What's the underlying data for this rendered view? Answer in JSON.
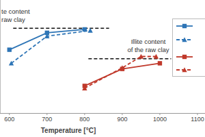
{
  "chart_data": {
    "type": "line",
    "x_label": "Temperature [°C]",
    "xlim": [
      575,
      1120
    ],
    "xticks": [
      600,
      700,
      800,
      900,
      1000,
      1100
    ],
    "ylim": [
      0,
      100
    ],
    "tick_labels": "x",
    "grid": false,
    "legend": "right",
    "series": [
      {
        "color": "#2e75b6",
        "marker": "square",
        "line_style": "solid",
        "x": [
          600,
          700,
          800
        ],
        "values": [
          56,
          71,
          74
        ]
      },
      {
        "color": "#2e75b6",
        "marker": "triangle",
        "line_style": "dashed",
        "x": [
          605,
          700,
          815
        ],
        "values": [
          44,
          68,
          73
        ]
      },
      {
        "color": "#c0392b",
        "marker": "square",
        "line_style": "solid",
        "x": [
          800,
          900,
          1000
        ],
        "values": [
          24,
          39,
          44
        ]
      },
      {
        "color": "#c0392b",
        "marker": "triangle",
        "line_style": "dashed",
        "x": [
          800,
          900,
          950,
          990
        ],
        "values": [
          22,
          40,
          50,
          50
        ]
      }
    ],
    "annotations": [
      {
        "text": [
          "te content",
          "raw clay"
        ],
        "y": 75,
        "x": [
          610,
          865
        ]
      },
      {
        "text": [
          "Illite content",
          "of the raw clay"
        ],
        "y": 48,
        "x": [
          810,
          1030
        ]
      }
    ]
  }
}
